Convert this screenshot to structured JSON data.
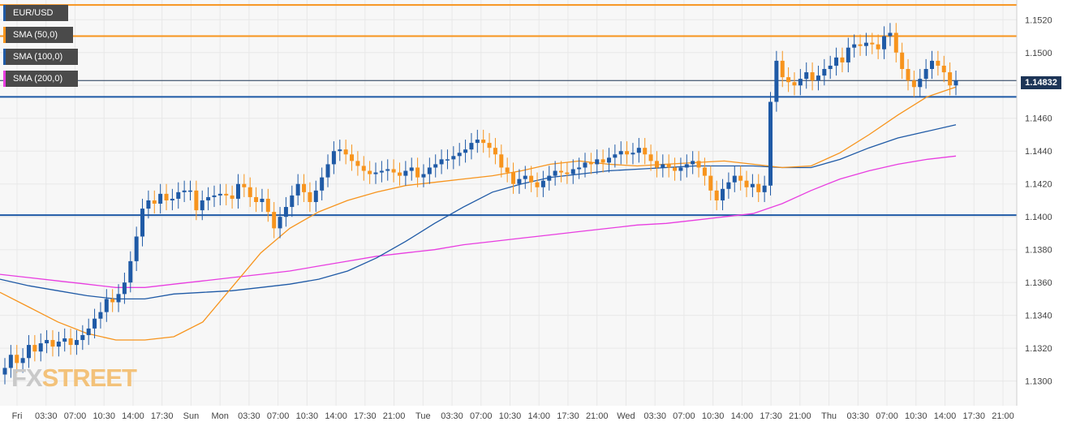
{
  "legend": [
    {
      "label": "EUR/USD",
      "color": "#1f5aa6"
    },
    {
      "label": "SMA (50,0)",
      "color": "#f7941d"
    },
    {
      "label": "SMA (100,0)",
      "color": "#1f5aa6"
    },
    {
      "label": "SMA (200,0)",
      "color": "#e83de0"
    }
  ],
  "price_tag": "1.14832",
  "watermark": {
    "part1": "FX",
    "part2": "STREET"
  },
  "colors": {
    "bull": "#1f5aa6",
    "bear": "#f7941d",
    "sma50": "#f7941d",
    "sma100": "#1f5aa6",
    "sma200": "#e83de0",
    "resistance": "#f7941d",
    "support": "#1f5aa6",
    "grid": "#e8e8e8",
    "axis_text": "#444444"
  },
  "chart_data": {
    "type": "candlestick",
    "title": "",
    "xlabel": "",
    "ylabel": "",
    "ylim": [
      1.1285,
      1.1532
    ],
    "grid": true,
    "legend_placement": "top-left",
    "y_ticks": [
      "1.1520",
      "1.1500",
      "1.1480",
      "1.1460",
      "1.1440",
      "1.1420",
      "1.1400",
      "1.1380",
      "1.1360",
      "1.1340",
      "1.1320",
      "1.1300"
    ],
    "x_ticks": [
      "Fri",
      "03:30",
      "07:00",
      "10:30",
      "14:00",
      "17:30",
      "Sun",
      "Mon",
      "03:30",
      "07:00",
      "10:30",
      "14:00",
      "17:30",
      "21:00",
      "Tue",
      "03:30",
      "07:00",
      "10:30",
      "14:00",
      "17:30",
      "21:00",
      "Wed",
      "03:30",
      "07:00",
      "10:30",
      "14:00",
      "17:30",
      "21:00",
      "Thu",
      "03:30",
      "07:00",
      "10:30",
      "14:00",
      "17:30",
      "21:00"
    ],
    "horizontal_levels": [
      {
        "value": 1.1529,
        "color": "#f7941d",
        "type": "resistance"
      },
      {
        "value": 1.151,
        "color": "#f7941d",
        "type": "resistance"
      },
      {
        "value": 1.1483,
        "color": "#1d3557",
        "type": "current"
      },
      {
        "value": 1.1473,
        "color": "#1f5aa6",
        "type": "support"
      },
      {
        "value": 1.1401,
        "color": "#1f5aa6",
        "type": "support"
      }
    ],
    "candle_closes": [
      1.1308,
      1.1316,
      1.1311,
      1.1314,
      1.1322,
      1.1318,
      1.1323,
      1.1325,
      1.1321,
      1.1324,
      1.1326,
      1.1322,
      1.1325,
      1.1328,
      1.1332,
      1.1338,
      1.1342,
      1.135,
      1.1348,
      1.1353,
      1.136,
      1.1373,
      1.1388,
      1.1405,
      1.141,
      1.1408,
      1.1414,
      1.141,
      1.1411,
      1.1415,
      1.1416,
      1.1416,
      1.1404,
      1.141,
      1.1412,
      1.1413,
      1.1414,
      1.1413,
      1.1411,
      1.142,
      1.1418,
      1.1412,
      1.1409,
      1.1411,
      1.1403,
      1.1393,
      1.14,
      1.1406,
      1.1413,
      1.142,
      1.1415,
      1.1409,
      1.1416,
      1.1424,
      1.1432,
      1.144,
      1.1441,
      1.1438,
      1.1434,
      1.1431,
      1.1428,
      1.1426,
      1.1427,
      1.1428,
      1.1429,
      1.1427,
      1.1425,
      1.1428,
      1.143,
      1.1424,
      1.1426,
      1.143,
      1.1432,
      1.1435,
      1.1435,
      1.1437,
      1.1439,
      1.1441,
      1.1445,
      1.1447,
      1.1445,
      1.1442,
      1.1438,
      1.143,
      1.1427,
      1.142,
      1.1423,
      1.1425,
      1.1421,
      1.1418,
      1.1422,
      1.1425,
      1.1428,
      1.1427,
      1.1426,
      1.1429,
      1.143,
      1.1433,
      1.1432,
      1.1435,
      1.1433,
      1.1436,
      1.1438,
      1.144,
      1.1438,
      1.1439,
      1.1442,
      1.1438,
      1.1434,
      1.143,
      1.1432,
      1.143,
      1.1428,
      1.143,
      1.1432,
      1.1434,
      1.143,
      1.1425,
      1.1416,
      1.141,
      1.1417,
      1.1421,
      1.1425,
      1.1422,
      1.1418,
      1.142,
      1.1415,
      1.1419,
      1.147,
      1.1495,
      1.1485,
      1.1482,
      1.148,
      1.1484,
      1.1488,
      1.1483,
      1.1486,
      1.149,
      1.1492,
      1.1497,
      1.1494,
      1.1503,
      1.1505,
      1.1504,
      1.1506,
      1.1505,
      1.1502,
      1.151,
      1.1512,
      1.15,
      1.149,
      1.1483,
      1.1479,
      1.1484,
      1.149,
      1.1495,
      1.1492,
      1.1488,
      1.148,
      1.1483
    ],
    "sma_50": [
      1.1354,
      1.1345,
      1.1336,
      1.1329,
      1.1325,
      1.1325,
      1.1327,
      1.1336,
      1.1357,
      1.1378,
      1.1393,
      1.1403,
      1.141,
      1.1415,
      1.1419,
      1.1421,
      1.1423,
      1.1425,
      1.1428,
      1.1432,
      1.1434,
      1.1432,
      1.1431,
      1.1432,
      1.1433,
      1.1434,
      1.1432,
      1.143,
      1.1431,
      1.1439,
      1.145,
      1.1462,
      1.1473,
      1.1479
    ],
    "sma_100": [
      1.1362,
      1.1358,
      1.1355,
      1.1352,
      1.135,
      1.135,
      1.1353,
      1.1354,
      1.1355,
      1.1357,
      1.1359,
      1.1362,
      1.1367,
      1.1375,
      1.1385,
      1.1396,
      1.1406,
      1.1415,
      1.142,
      1.1424,
      1.1426,
      1.1428,
      1.1429,
      1.143,
      1.1431,
      1.1431,
      1.1431,
      1.143,
      1.143,
      1.1435,
      1.1442,
      1.1448,
      1.1452,
      1.1456
    ],
    "sma_200": [
      1.1365,
      1.1363,
      1.1361,
      1.1359,
      1.1357,
      1.1357,
      1.1359,
      1.1361,
      1.1363,
      1.1365,
      1.1367,
      1.137,
      1.1373,
      1.1376,
      1.1378,
      1.138,
      1.1383,
      1.1385,
      1.1387,
      1.1389,
      1.1391,
      1.1393,
      1.1395,
      1.1396,
      1.1398,
      1.14,
      1.1402,
      1.1408,
      1.1416,
      1.1423,
      1.1428,
      1.1432,
      1.1435,
      1.1437
    ]
  }
}
